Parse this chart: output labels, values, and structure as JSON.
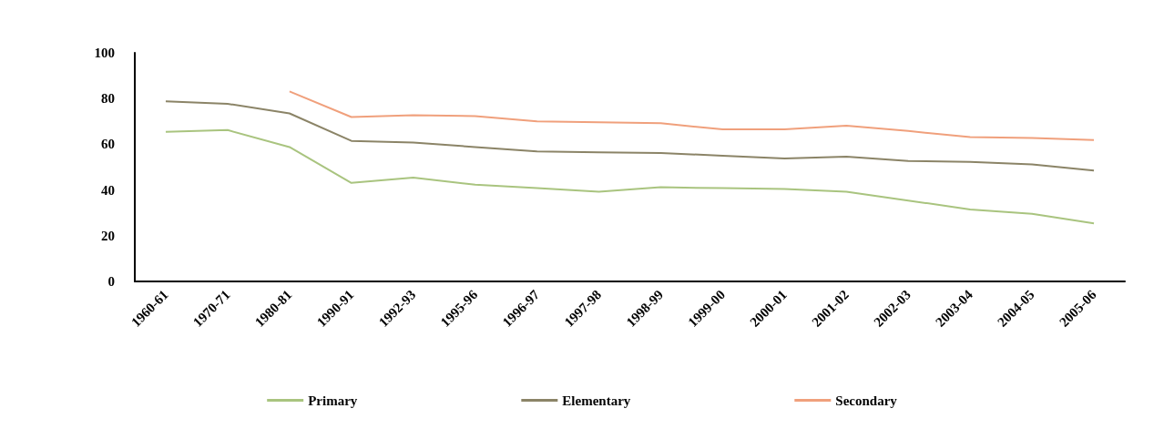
{
  "chart_data": {
    "type": "line",
    "categories": [
      "1960-61",
      "1970-71",
      "1980-81",
      "1990-91",
      "1992-93",
      "1995-96",
      "1996-97",
      "1997-98",
      "1998-99",
      "1999-00",
      "2000-01",
      "2001-02",
      "2002-03",
      "2003-04",
      "2004-05",
      "2005-06"
    ],
    "series": [
      {
        "name": "Primary",
        "color": "#a9c47f",
        "values": [
          65.4,
          66.2,
          58.8,
          43.1,
          45.4,
          42.3,
          40.8,
          39.2,
          41.2,
          40.8,
          40.4,
          39.2,
          35.4,
          31.5,
          29.6,
          25.4
        ]
      },
      {
        "name": "Elementary",
        "color": "#8b8467",
        "values": [
          78.8,
          77.7,
          73.5,
          61.5,
          60.8,
          58.8,
          56.9,
          56.5,
          56.2,
          55,
          53.8,
          54.6,
          52.7,
          52.3,
          51.2,
          48.5
        ]
      },
      {
        "name": "Secondary",
        "color": "#f0a07c",
        "values": [
          null,
          null,
          83.1,
          71.9,
          72.7,
          72.3,
          70,
          69.6,
          69.2,
          66.5,
          66.5,
          68.1,
          65.8,
          63.1,
          62.7,
          61.9
        ]
      }
    ],
    "ylim": [
      0,
      100
    ],
    "yticks": [
      0,
      20,
      40,
      60,
      80,
      100
    ],
    "grid": false,
    "legend": "bottom",
    "marker": "none",
    "line_style": "solid"
  }
}
